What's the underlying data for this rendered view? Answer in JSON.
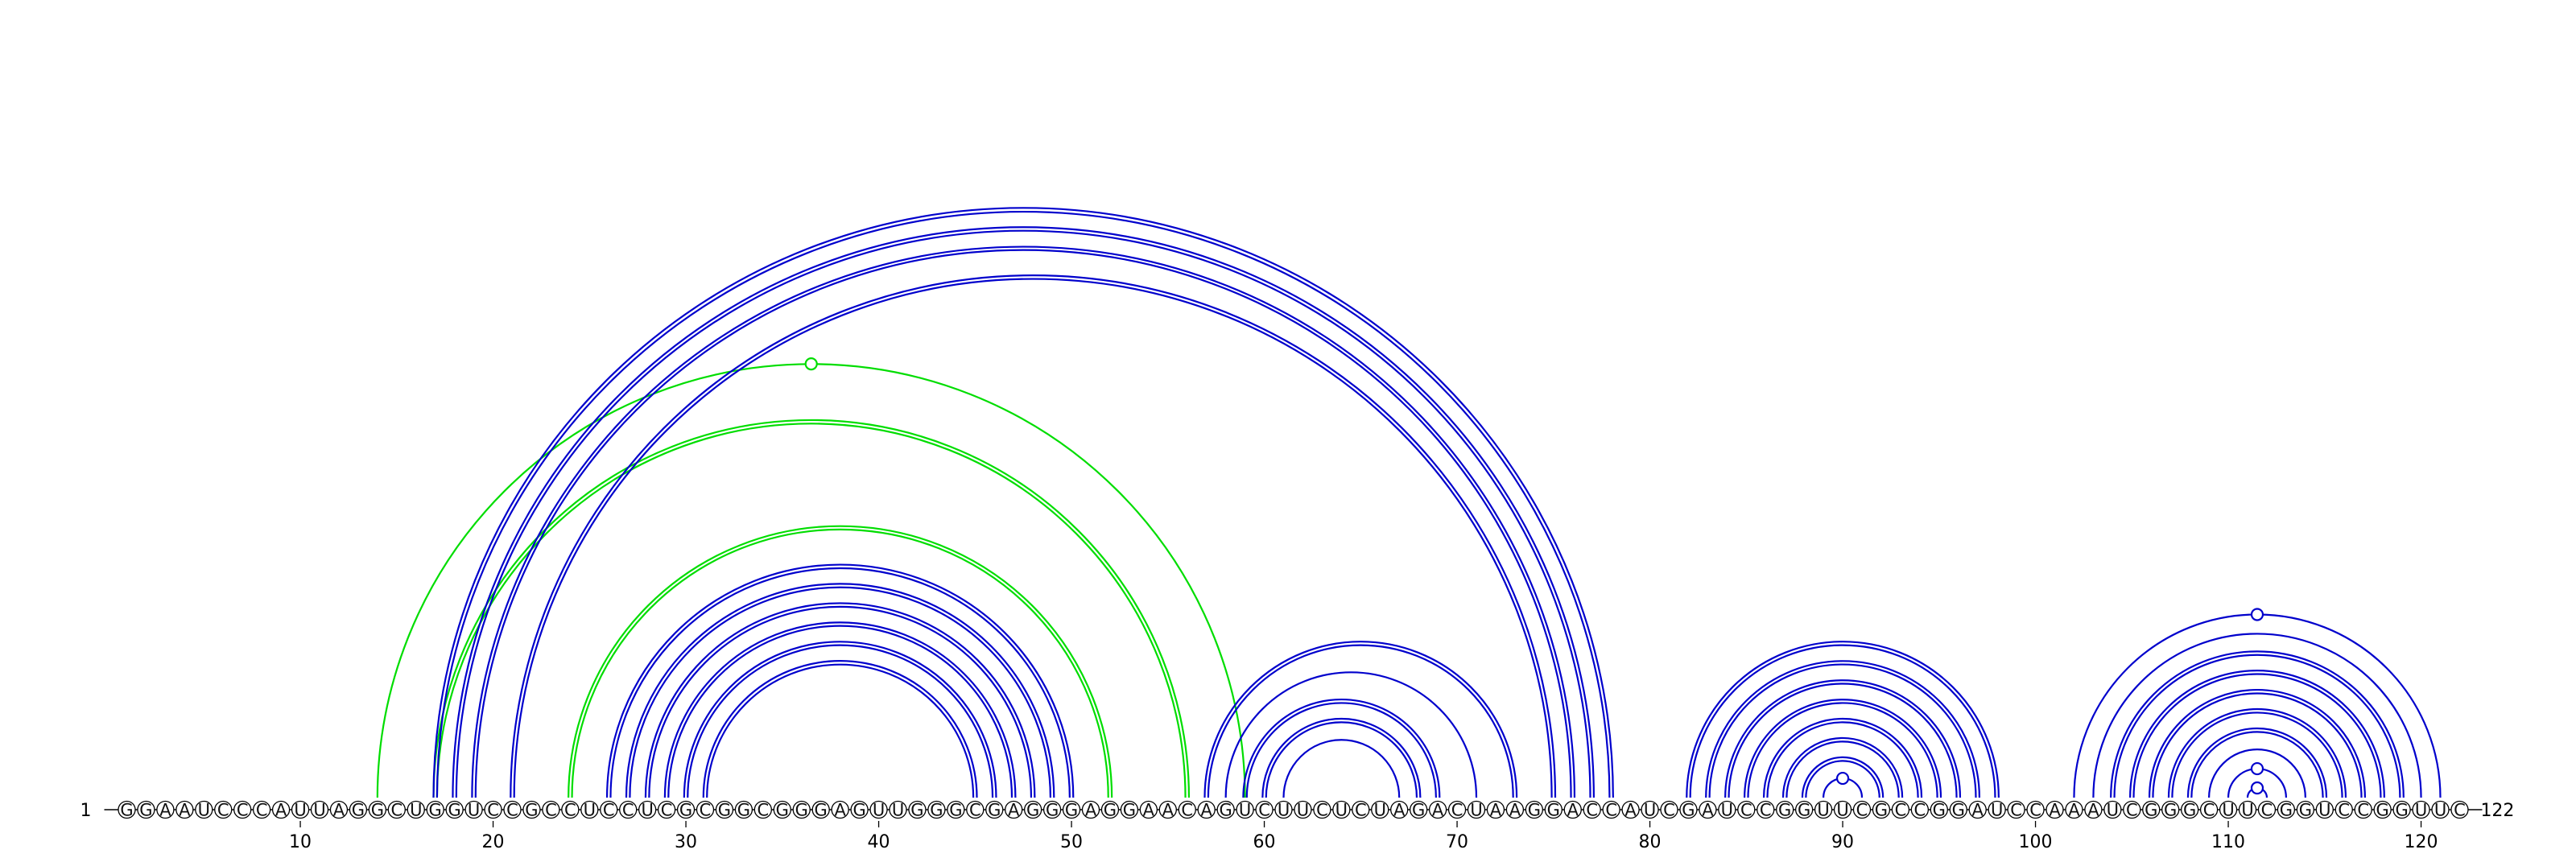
{
  "diagram": {
    "type": "rna-arc-diagram",
    "sequence": "GGAAUCCCAUUAGGCUGGUCCGCCUCCUCGCGGCGGGAGUUGGGCGAGGGAGGAACAGUCUUCUCUAGACUAAGGACCAUCGAUCCGGUUCGCCGGAUCCAAAUCGGGCUUCGGUCCGGUUC",
    "start_label": "1",
    "end_label": "122",
    "tick_labels": [
      "10",
      "20",
      "30",
      "40",
      "50",
      "60",
      "70",
      "80",
      "90",
      "100",
      "110",
      "120"
    ],
    "colors": {
      "primary_arcs": "#0000cc",
      "secondary_arcs": "#00dd00",
      "axis": "#000000"
    },
    "arc_groups": [
      {
        "set": "primary",
        "color": "#0000cc",
        "double": true,
        "pairs": [
          [
            17,
            78
          ],
          [
            18,
            77
          ],
          [
            19,
            76
          ],
          [
            21,
            75
          ]
        ]
      },
      {
        "set": "primary",
        "color": "#0000cc",
        "double": true,
        "pairs": [
          [
            26,
            50
          ],
          [
            27,
            49
          ],
          [
            28,
            48
          ],
          [
            29,
            47
          ],
          [
            30,
            46
          ],
          [
            31,
            45
          ]
        ]
      },
      {
        "set": "primary",
        "color": "#0000cc",
        "double": true,
        "pairs": [
          [
            57,
            73
          ]
        ]
      },
      {
        "set": "primary",
        "color": "#0000cc",
        "double": false,
        "pairs": [
          [
            58,
            71
          ]
        ]
      },
      {
        "set": "primary",
        "color": "#0000cc",
        "double": true,
        "pairs": [
          [
            59,
            69
          ],
          [
            60,
            68
          ]
        ]
      },
      {
        "set": "primary",
        "color": "#0000cc",
        "double": false,
        "pairs": [
          [
            61,
            67
          ]
        ]
      },
      {
        "set": "primary",
        "color": "#0000cc",
        "double": true,
        "pairs": [
          [
            82,
            98
          ],
          [
            83,
            97
          ],
          [
            84,
            96
          ],
          [
            85,
            95
          ],
          [
            86,
            94
          ],
          [
            87,
            93
          ],
          [
            88,
            92
          ]
        ]
      },
      {
        "set": "primary",
        "color": "#0000cc",
        "double": false,
        "pairs": [
          [
            89,
            91
          ]
        ]
      },
      {
        "set": "primary",
        "color": "#0000cc",
        "double": false,
        "pairs": [
          [
            102,
            121
          ],
          [
            103,
            120
          ]
        ]
      },
      {
        "set": "primary",
        "color": "#0000cc",
        "double": true,
        "pairs": [
          [
            104,
            119
          ],
          [
            105,
            118
          ],
          [
            106,
            117
          ],
          [
            107,
            116
          ],
          [
            108,
            115
          ]
        ]
      },
      {
        "set": "primary",
        "color": "#0000cc",
        "double": false,
        "pairs": [
          [
            109,
            114
          ],
          [
            110,
            113
          ],
          [
            111,
            112
          ]
        ]
      },
      {
        "set": "secondary",
        "color": "#00dd00",
        "double": true,
        "pairs": [
          [
            17,
            56
          ],
          [
            24,
            52
          ]
        ]
      },
      {
        "set": "secondary",
        "color": "#00dd00",
        "double": false,
        "pairs": [
          [
            14,
            59
          ]
        ]
      }
    ],
    "arc_markers": [
      {
        "color": "#00dd00",
        "pair": [
          14,
          59
        ]
      },
      {
        "color": "#0000cc",
        "pair": [
          89,
          91
        ]
      },
      {
        "color": "#0000cc",
        "pair": [
          111,
          112
        ]
      },
      {
        "color": "#0000cc",
        "pair": [
          110,
          113
        ]
      },
      {
        "color": "#0000cc",
        "pair": [
          102,
          121
        ]
      }
    ]
  }
}
